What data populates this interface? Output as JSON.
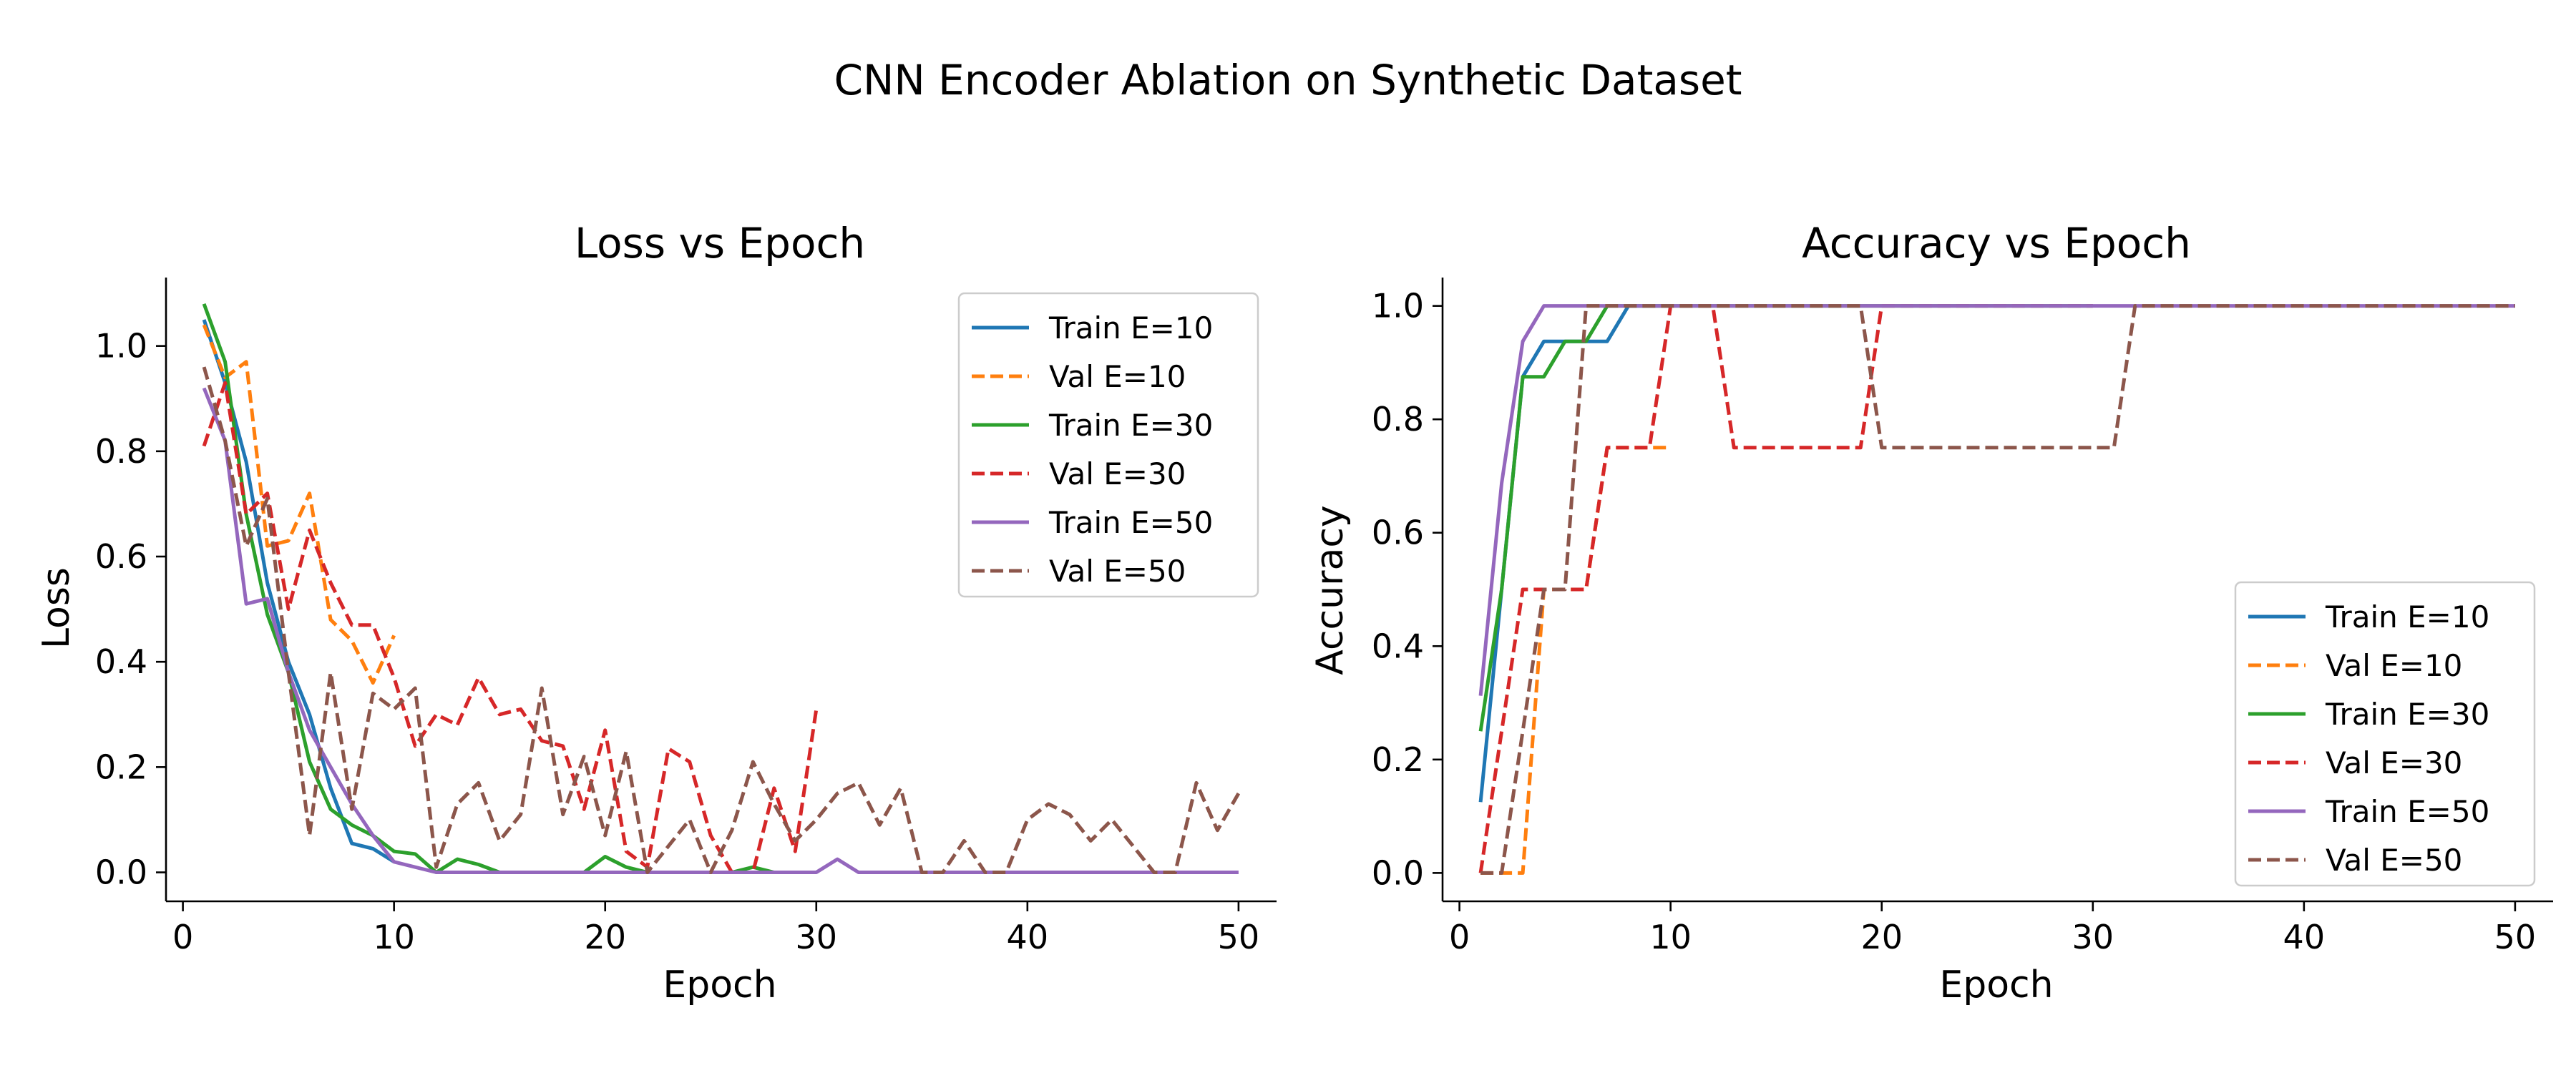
{
  "figure": {
    "title": "CNN Encoder Ablation on Synthetic Dataset"
  },
  "colors": {
    "E10_train": "#1f77b4",
    "E10_val": "#ff7f0e",
    "E30_train": "#2ca02c",
    "E30_val": "#d62728",
    "E50_train": "#9467bd",
    "E50_val": "#8c564b"
  },
  "chart_data": [
    {
      "type": "line",
      "title": "Loss vs Epoch",
      "xlabel": "Epoch",
      "ylabel": "Loss",
      "xlim": [
        -0.8,
        51.8
      ],
      "ylim": [
        -0.055,
        1.13
      ],
      "xticks": [
        0,
        10,
        20,
        30,
        40,
        50
      ],
      "yticks": [
        0.0,
        0.2,
        0.4,
        0.6,
        0.8,
        1.0
      ],
      "ytick_labels": [
        "0.0",
        "0.2",
        "0.4",
        "0.6",
        "0.8",
        "1.0"
      ],
      "grid": false,
      "legend_position": "top-right",
      "series": [
        {
          "name": "Train E=10",
          "color": "#1f77b4",
          "style": "solid",
          "x": [
            1,
            2,
            3,
            4,
            5,
            6,
            7,
            8,
            9,
            10
          ],
          "y": [
            1.05,
            0.93,
            0.78,
            0.55,
            0.4,
            0.3,
            0.16,
            0.055,
            0.045,
            0.02
          ]
        },
        {
          "name": "Val E=10",
          "color": "#ff7f0e",
          "style": "dashed",
          "x": [
            1,
            2,
            3,
            4,
            5,
            6,
            7,
            8,
            9,
            10
          ],
          "y": [
            1.04,
            0.94,
            0.97,
            0.62,
            0.63,
            0.72,
            0.48,
            0.44,
            0.36,
            0.45
          ]
        },
        {
          "name": "Train E=30",
          "color": "#2ca02c",
          "style": "solid",
          "x": [
            1,
            2,
            3,
            4,
            5,
            6,
            7,
            8,
            9,
            10,
            11,
            12,
            13,
            14,
            15,
            16,
            17,
            18,
            19,
            20,
            21,
            22,
            23,
            24,
            25,
            26,
            27,
            28,
            29,
            30
          ],
          "y": [
            1.08,
            0.97,
            0.68,
            0.49,
            0.38,
            0.21,
            0.12,
            0.09,
            0.07,
            0.04,
            0.035,
            0.0,
            0.025,
            0.015,
            0.0,
            0.0,
            0.0,
            0.0,
            0.0,
            0.03,
            0.01,
            0.0,
            0.0,
            0.0,
            0.0,
            0.0,
            0.01,
            0.0,
            0.0,
            0.0
          ]
        },
        {
          "name": "Val E=30",
          "color": "#d62728",
          "style": "dashed",
          "x": [
            1,
            2,
            3,
            4,
            5,
            6,
            7,
            8,
            9,
            10,
            11,
            12,
            13,
            14,
            15,
            16,
            17,
            18,
            19,
            20,
            21,
            22,
            23,
            24,
            25,
            26,
            27,
            28,
            29,
            30
          ],
          "y": [
            0.81,
            0.93,
            0.68,
            0.72,
            0.5,
            0.65,
            0.55,
            0.47,
            0.47,
            0.37,
            0.24,
            0.3,
            0.28,
            0.37,
            0.3,
            0.31,
            0.25,
            0.24,
            0.12,
            0.27,
            0.04,
            0.01,
            0.235,
            0.21,
            0.07,
            0.0,
            0.0,
            0.16,
            0.04,
            0.31
          ]
        },
        {
          "name": "Train E=50",
          "color": "#9467bd",
          "style": "solid",
          "x": [
            1,
            2,
            3,
            4,
            5,
            6,
            7,
            8,
            9,
            10,
            11,
            12,
            13,
            14,
            15,
            16,
            17,
            18,
            19,
            20,
            21,
            22,
            23,
            24,
            25,
            26,
            27,
            28,
            29,
            30,
            31,
            32,
            33,
            34,
            35,
            36,
            37,
            38,
            39,
            40,
            41,
            42,
            43,
            44,
            45,
            46,
            47,
            48,
            49,
            50
          ],
          "y": [
            0.92,
            0.82,
            0.51,
            0.52,
            0.38,
            0.27,
            0.2,
            0.13,
            0.07,
            0.02,
            0.01,
            0.0,
            0.0,
            0.0,
            0.0,
            0.0,
            0.0,
            0.0,
            0.0,
            0.0,
            0.0,
            0.0,
            0.0,
            0.0,
            0.0,
            0.0,
            0.0,
            0.0,
            0.0,
            0.0,
            0.025,
            0.0,
            0.0,
            0.0,
            0.0,
            0.0,
            0.0,
            0.0,
            0.0,
            0.0,
            0.0,
            0.0,
            0.0,
            0.0,
            0.0,
            0.0,
            0.0,
            0.0,
            0.0,
            0.0
          ]
        },
        {
          "name": "Val E=50",
          "color": "#8c564b",
          "style": "dashed",
          "x": [
            1,
            2,
            3,
            4,
            5,
            6,
            7,
            8,
            9,
            10,
            11,
            12,
            13,
            14,
            15,
            16,
            17,
            18,
            19,
            20,
            21,
            22,
            23,
            24,
            25,
            26,
            27,
            28,
            29,
            30,
            31,
            32,
            33,
            34,
            35,
            36,
            37,
            38,
            39,
            40,
            41,
            42,
            43,
            44,
            45,
            46,
            47,
            48,
            49,
            50
          ],
          "y": [
            0.96,
            0.82,
            0.62,
            0.71,
            0.38,
            0.07,
            0.38,
            0.12,
            0.34,
            0.31,
            0.35,
            0.01,
            0.13,
            0.17,
            0.06,
            0.11,
            0.35,
            0.11,
            0.22,
            0.07,
            0.23,
            0.0,
            0.05,
            0.1,
            0.0,
            0.08,
            0.21,
            0.13,
            0.06,
            0.1,
            0.15,
            0.17,
            0.09,
            0.16,
            0.0,
            0.0,
            0.06,
            0.0,
            0.0,
            0.1,
            0.13,
            0.11,
            0.06,
            0.1,
            0.05,
            0.0,
            0.0,
            0.17,
            0.08,
            0.15
          ]
        }
      ]
    },
    {
      "type": "line",
      "title": "Accuracy vs Epoch",
      "xlabel": "Epoch",
      "ylabel": "Accuracy",
      "xlim": [
        -0.8,
        51.8
      ],
      "ylim": [
        -0.05,
        1.05
      ],
      "xticks": [
        0,
        10,
        20,
        30,
        40,
        50
      ],
      "yticks": [
        0.0,
        0.2,
        0.4,
        0.6,
        0.8,
        1.0
      ],
      "ytick_labels": [
        "0.0",
        "0.2",
        "0.4",
        "0.6",
        "0.8",
        "1.0"
      ],
      "grid": false,
      "legend_position": "bottom-right",
      "series": [
        {
          "name": "Train E=10",
          "color": "#1f77b4",
          "style": "solid",
          "x": [
            1,
            2,
            3,
            4,
            5,
            6,
            7,
            8,
            9,
            10
          ],
          "y": [
            0.125,
            0.5,
            0.875,
            0.9375,
            0.9375,
            0.9375,
            0.9375,
            1.0,
            1.0,
            1.0
          ]
        },
        {
          "name": "Val E=10",
          "color": "#ff7f0e",
          "style": "dashed",
          "x": [
            1,
            2,
            3,
            4,
            5,
            6,
            7,
            8,
            9,
            10
          ],
          "y": [
            0.0,
            0.0,
            0.0,
            0.5,
            0.5,
            0.5,
            0.75,
            0.75,
            0.75,
            0.75
          ]
        },
        {
          "name": "Train E=30",
          "color": "#2ca02c",
          "style": "solid",
          "x": [
            1,
            2,
            3,
            4,
            5,
            6,
            7,
            8,
            9,
            10,
            11,
            12,
            13,
            14,
            15,
            16,
            17,
            18,
            19,
            20,
            21,
            22,
            23,
            24,
            25,
            26,
            27,
            28,
            29,
            30
          ],
          "y": [
            0.25,
            0.5,
            0.875,
            0.875,
            0.9375,
            0.9375,
            1.0,
            1.0,
            1.0,
            1.0,
            1.0,
            1.0,
            1.0,
            1.0,
            1.0,
            1.0,
            1.0,
            1.0,
            1.0,
            1.0,
            1.0,
            1.0,
            1.0,
            1.0,
            1.0,
            1.0,
            1.0,
            1.0,
            1.0,
            1.0
          ]
        },
        {
          "name": "Val E=30",
          "color": "#d62728",
          "style": "dashed",
          "x": [
            1,
            2,
            3,
            4,
            5,
            6,
            7,
            8,
            9,
            10,
            11,
            12,
            13,
            14,
            15,
            16,
            17,
            18,
            19,
            20,
            21,
            22,
            23,
            24,
            25,
            26,
            27,
            28,
            29,
            30
          ],
          "y": [
            0.0,
            0.25,
            0.5,
            0.5,
            0.5,
            0.5,
            0.75,
            0.75,
            0.75,
            1.0,
            1.0,
            1.0,
            0.75,
            0.75,
            0.75,
            0.75,
            0.75,
            0.75,
            0.75,
            1.0,
            1.0,
            1.0,
            1.0,
            1.0,
            1.0,
            1.0,
            1.0,
            1.0,
            1.0,
            1.0
          ]
        },
        {
          "name": "Train E=50",
          "color": "#9467bd",
          "style": "solid",
          "x": [
            1,
            2,
            3,
            4,
            5,
            6,
            7,
            8,
            9,
            10,
            11,
            12,
            13,
            14,
            15,
            16,
            17,
            18,
            19,
            20,
            21,
            22,
            23,
            24,
            25,
            26,
            27,
            28,
            29,
            30,
            31,
            32,
            33,
            34,
            35,
            36,
            37,
            38,
            39,
            40,
            41,
            42,
            43,
            44,
            45,
            46,
            47,
            48,
            49,
            50
          ],
          "y": [
            0.3125,
            0.6875,
            0.9375,
            1.0,
            1.0,
            1.0,
            1.0,
            1.0,
            1.0,
            1.0,
            1.0,
            1.0,
            1.0,
            1.0,
            1.0,
            1.0,
            1.0,
            1.0,
            1.0,
            1.0,
            1.0,
            1.0,
            1.0,
            1.0,
            1.0,
            1.0,
            1.0,
            1.0,
            1.0,
            1.0,
            1.0,
            1.0,
            1.0,
            1.0,
            1.0,
            1.0,
            1.0,
            1.0,
            1.0,
            1.0,
            1.0,
            1.0,
            1.0,
            1.0,
            1.0,
            1.0,
            1.0,
            1.0,
            1.0,
            1.0
          ]
        },
        {
          "name": "Val E=50",
          "color": "#8c564b",
          "style": "dashed",
          "x": [
            1,
            2,
            3,
            4,
            5,
            6,
            7,
            8,
            9,
            10,
            11,
            12,
            13,
            14,
            15,
            16,
            17,
            18,
            19,
            20,
            21,
            22,
            23,
            24,
            25,
            26,
            27,
            28,
            29,
            30,
            31,
            32,
            33,
            34,
            35,
            36,
            37,
            38,
            39,
            40,
            41,
            42,
            43,
            44,
            45,
            46,
            47,
            48,
            49,
            50
          ],
          "y": [
            0.0,
            0.0,
            0.25,
            0.5,
            0.5,
            1.0,
            1.0,
            1.0,
            1.0,
            1.0,
            1.0,
            1.0,
            1.0,
            1.0,
            1.0,
            1.0,
            1.0,
            1.0,
            1.0,
            0.75,
            0.75,
            0.75,
            0.75,
            0.75,
            0.75,
            0.75,
            0.75,
            0.75,
            0.75,
            0.75,
            0.75,
            1.0,
            1.0,
            1.0,
            1.0,
            1.0,
            1.0,
            1.0,
            1.0,
            1.0,
            1.0,
            1.0,
            1.0,
            1.0,
            1.0,
            1.0,
            1.0,
            1.0,
            1.0,
            1.0
          ]
        }
      ]
    }
  ]
}
